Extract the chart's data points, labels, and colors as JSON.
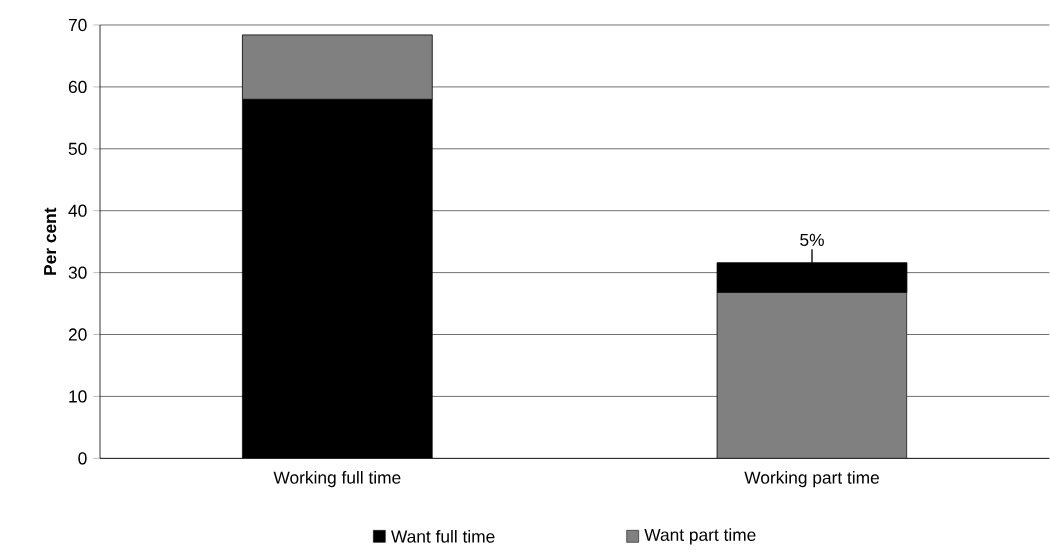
{
  "chart_data": {
    "type": "bar",
    "ylabel": "Per cent",
    "categories": [
      "Working full time",
      "Working part time"
    ],
    "series": [
      {
        "name": "Want full time",
        "color": "#000000",
        "values": [
          58.0,
          4.8
        ],
        "base": [
          0,
          26.8
        ]
      },
      {
        "name": "Want part time",
        "color": "#808080",
        "values": [
          10.4,
          26.8
        ],
        "base": [
          58.0,
          0
        ]
      }
    ],
    "ylim": [
      0,
      70
    ],
    "yticks": [
      0,
      10,
      20,
      30,
      40,
      50,
      60,
      70
    ],
    "grid": "y",
    "legend": "bottom",
    "annotations": [
      {
        "text": "5%",
        "x": "Working part time",
        "y": 31.6
      }
    ]
  }
}
